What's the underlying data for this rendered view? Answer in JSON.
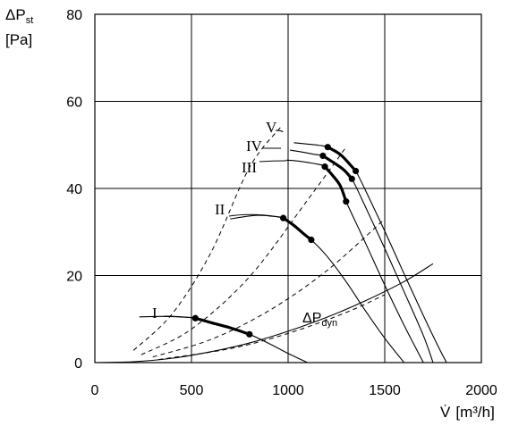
{
  "chart_data": {
    "type": "line",
    "ylabel": {
      "symbol": "ΔP",
      "sub": "st",
      "unit": "[Pa]"
    },
    "xlabel": {
      "symbol": "V̇",
      "unit": "[m³/h]"
    },
    "xlim": [
      0,
      2000
    ],
    "ylim": [
      0,
      80
    ],
    "xticks": [
      "0",
      "500",
      "1000",
      "1500",
      "2000"
    ],
    "yticks": [
      "0",
      "20",
      "40",
      "60",
      "80"
    ],
    "grid": true,
    "fan_curves": [
      {
        "name": "I",
        "points": [
          [
            230,
            10.5
          ],
          [
            350,
            10.6
          ],
          [
            480,
            10.4
          ],
          [
            520,
            10.2
          ],
          [
            600,
            9.2
          ],
          [
            700,
            8
          ],
          [
            800,
            6.5
          ],
          [
            900,
            4.4
          ],
          [
            1000,
            2.1
          ],
          [
            1100,
            0
          ]
        ],
        "highlight": [
          [
            520,
            10.2
          ],
          [
            600,
            9.2
          ],
          [
            700,
            8
          ],
          [
            800,
            6.5
          ]
        ]
      },
      {
        "name": "II",
        "points": [
          [
            700,
            33
          ],
          [
            830,
            33.8
          ],
          [
            920,
            33.6
          ],
          [
            975,
            33.2
          ],
          [
            1030,
            31.5
          ],
          [
            1080,
            29.6
          ],
          [
            1120,
            28.2
          ],
          [
            1200,
            24.5
          ],
          [
            1300,
            18.6
          ],
          [
            1400,
            11.9
          ],
          [
            1500,
            5.6
          ],
          [
            1600,
            0
          ]
        ],
        "highlight": [
          [
            975,
            33.2
          ],
          [
            1030,
            31.5
          ],
          [
            1080,
            29.6
          ],
          [
            1120,
            28.2
          ]
        ]
      },
      {
        "name": "III",
        "points": [
          [
            990,
            46.5
          ],
          [
            1050,
            46.3
          ],
          [
            1150,
            45.6
          ],
          [
            1190,
            45
          ],
          [
            1230,
            43
          ],
          [
            1270,
            40.6
          ],
          [
            1300,
            37
          ],
          [
            1400,
            27.5
          ],
          [
            1500,
            17.8
          ],
          [
            1600,
            8.6
          ],
          [
            1700,
            0
          ]
        ],
        "highlight": [
          [
            1190,
            45
          ],
          [
            1230,
            43
          ],
          [
            1270,
            40.6
          ],
          [
            1300,
            37
          ]
        ]
      },
      {
        "name": "IV",
        "points": [
          [
            1010,
            48.8
          ],
          [
            1080,
            48.3
          ],
          [
            1140,
            47.8
          ],
          [
            1180,
            47.5
          ],
          [
            1240,
            45.8
          ],
          [
            1290,
            44.2
          ],
          [
            1330,
            42.2
          ],
          [
            1400,
            35.8
          ],
          [
            1500,
            26.2
          ],
          [
            1600,
            16.3
          ],
          [
            1700,
            6.2
          ],
          [
            1750,
            0
          ]
        ],
        "highlight": [
          [
            1180,
            47.5
          ],
          [
            1240,
            45.8
          ],
          [
            1290,
            44.2
          ],
          [
            1330,
            42.2
          ]
        ]
      },
      {
        "name": "V",
        "points": [
          [
            1030,
            50.5
          ],
          [
            1100,
            50.2
          ],
          [
            1160,
            49.9
          ],
          [
            1205,
            49.5
          ],
          [
            1270,
            47.8
          ],
          [
            1320,
            45.5
          ],
          [
            1350,
            44
          ],
          [
            1400,
            39.6
          ],
          [
            1500,
            30.2
          ],
          [
            1600,
            20.4
          ],
          [
            1700,
            10.8
          ],
          [
            1780,
            3.4
          ],
          [
            1820,
            0
          ]
        ],
        "highlight": [
          [
            1205,
            49.5
          ],
          [
            1270,
            47.8
          ],
          [
            1320,
            45.5
          ],
          [
            1350,
            44
          ]
        ]
      }
    ],
    "system_curves": [
      {
        "dashed": true,
        "points": [
          [
            200,
            2.8
          ],
          [
            400,
            11.2
          ],
          [
            600,
            25.2
          ],
          [
            800,
            44.8
          ],
          [
            960,
            54
          ]
        ]
      },
      {
        "dashed": true,
        "points": [
          [
            240,
            1.8
          ],
          [
            500,
            7.7
          ],
          [
            800,
            19.7
          ],
          [
            1100,
            37.3
          ],
          [
            1300,
            49.5
          ]
        ]
      },
      {
        "dashed": true,
        "points": [
          [
            300,
            1.3
          ],
          [
            600,
            5.3
          ],
          [
            900,
            11.9
          ],
          [
            1200,
            21.1
          ],
          [
            1500,
            33
          ]
        ]
      },
      {
        "dashed": true,
        "points": [
          [
            330,
            0.7
          ],
          [
            700,
            3.2
          ],
          [
            1000,
            6.7
          ],
          [
            1300,
            11.5
          ],
          [
            1500,
            15.6
          ],
          [
            1500,
            37.5
          ]
        ]
      }
    ],
    "dynamic_pressure_curve": {
      "label": {
        "symbol": "ΔP",
        "sub": "dyn"
      },
      "points": [
        [
          0,
          0
        ],
        [
          200,
          0.2
        ],
        [
          400,
          1
        ],
        [
          600,
          2.5
        ],
        [
          800,
          4.5
        ],
        [
          1000,
          7.2
        ],
        [
          1200,
          10.4
        ],
        [
          1400,
          14.2
        ],
        [
          1600,
          18.6
        ],
        [
          1750,
          22.7
        ]
      ]
    }
  }
}
